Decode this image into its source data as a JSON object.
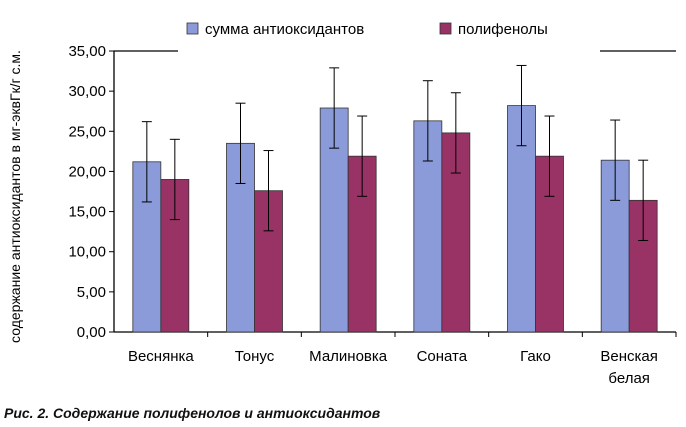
{
  "chart_data": {
    "type": "bar",
    "ylabel": "содержание антиоксидантов в мг-эквГк/г с.м.",
    "ylim": [
      0,
      35
    ],
    "ytick_step": 5,
    "ytick_labels": [
      "0,00",
      "5,00",
      "10,00",
      "15,00",
      "20,00",
      "25,00",
      "30,00",
      "35,00"
    ],
    "categories": [
      [
        "Веснянка"
      ],
      [
        "Тонус"
      ],
      [
        "Малиновка"
      ],
      [
        "Соната"
      ],
      [
        "Гако"
      ],
      [
        "Венская",
        "белая"
      ]
    ],
    "legend_position": "top",
    "grid": false,
    "error_bars": true,
    "series": [
      {
        "name": "сумма антиоксидантов",
        "color": "#8b9bd9",
        "values": [
          21.2,
          23.5,
          27.9,
          26.3,
          28.2,
          21.4
        ],
        "errors": [
          5.0,
          5.0,
          5.0,
          5.0,
          5.0,
          5.0
        ]
      },
      {
        "name": "полифенолы",
        "color": "#993366",
        "values": [
          19.0,
          17.6,
          21.9,
          24.8,
          21.9,
          16.4
        ],
        "errors": [
          5.0,
          5.0,
          5.0,
          5.0,
          5.0,
          5.0
        ]
      }
    ]
  },
  "caption": "Рис. 2. Содержание полифенолов и антиоксидантов"
}
